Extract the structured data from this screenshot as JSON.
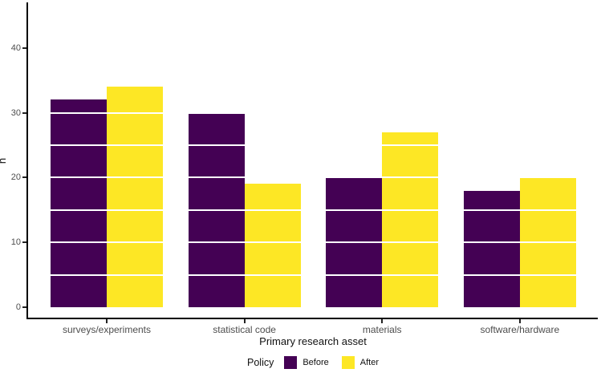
{
  "chart_data": {
    "type": "bar",
    "categories": [
      "surveys/experiments",
      "statistical code",
      "materials",
      "software/hardware"
    ],
    "series": [
      {
        "name": "Before",
        "color": "#440154",
        "values": [
          32,
          30,
          20,
          18
        ]
      },
      {
        "name": "After",
        "color": "#FDE725",
        "values": [
          34,
          19,
          27,
          20
        ]
      }
    ],
    "title": "",
    "xlabel": "Primary research asset",
    "ylabel": "n",
    "ylim": [
      0,
      46
    ],
    "yticks": [
      0,
      10,
      20,
      30,
      40
    ],
    "gridlines": {
      "step": 5,
      "color": "#ffffff",
      "on": true
    },
    "legend": {
      "title": "Policy",
      "position": "bottom"
    },
    "axis_color": "#000000",
    "tick_label_color": "#4d4d4d"
  }
}
